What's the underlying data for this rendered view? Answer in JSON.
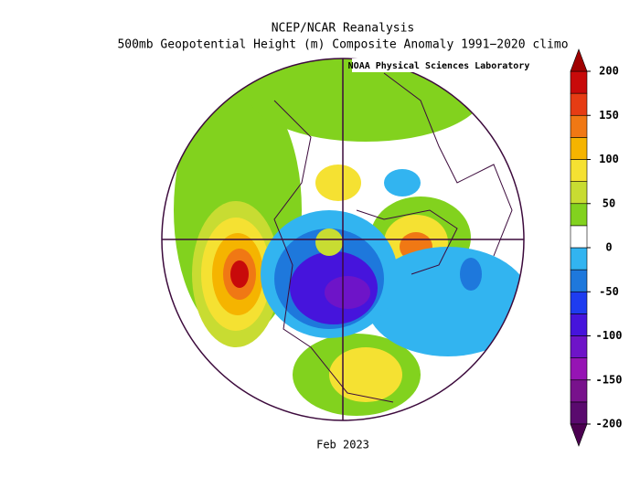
{
  "title": "NCEP/NCAR Reanalysis",
  "subtitle": "500mb Geopotential Height (m) Composite Anomaly 1991−2020 climo",
  "credit": "NOAA Physical Sciences Laboratory",
  "date": "Feb 2023",
  "colorbar": {
    "lim": [
      -200,
      200
    ],
    "ticks": [
      -200,
      -150,
      -100,
      -50,
      0,
      50,
      100,
      150,
      200
    ],
    "colors": [
      "#5a0a6e",
      "#78128c",
      "#9614b4",
      "#6e14c8",
      "#4614dc",
      "#1e3cf0",
      "#1e78dc",
      "#32b4f0",
      "#ffffff",
      "#82d21e",
      "#c8dc32",
      "#f5e132",
      "#f5b400",
      "#f07814",
      "#e63c14",
      "#c80a0a"
    ],
    "extend_colors": [
      "#4b0050",
      "#a00000"
    ]
  }
}
